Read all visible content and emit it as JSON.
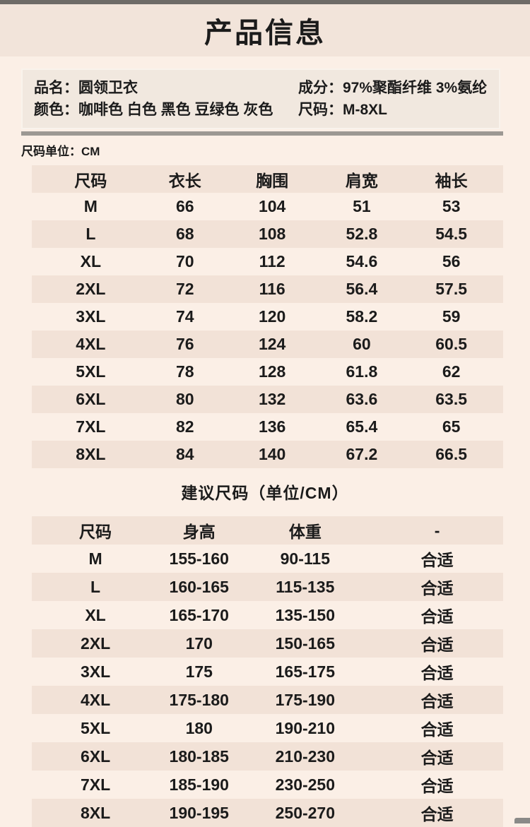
{
  "header": {
    "title": "产品信息"
  },
  "product_info": {
    "name": {
      "label": "品名：",
      "value": "圆领卫衣"
    },
    "composition": {
      "label": "成分：",
      "value": "97%聚酯纤维 3%氨纶"
    },
    "color": {
      "label": "颜色：",
      "value": "咖啡色 白色 黑色 豆绿色 灰色"
    },
    "size_range": {
      "label": "尺码：",
      "value": "M-8XL"
    }
  },
  "size_unit_label": "尺码单位：CM",
  "size_table": {
    "headers": [
      "尺码",
      "衣长",
      "胸围",
      "肩宽",
      "袖长"
    ],
    "rows": [
      [
        "M",
        "66",
        "104",
        "51",
        "53"
      ],
      [
        "L",
        "68",
        "108",
        "52.8",
        "54.5"
      ],
      [
        "XL",
        "70",
        "112",
        "54.6",
        "56"
      ],
      [
        "2XL",
        "72",
        "116",
        "56.4",
        "57.5"
      ],
      [
        "3XL",
        "74",
        "120",
        "58.2",
        "59"
      ],
      [
        "4XL",
        "76",
        "124",
        "60",
        "60.5"
      ],
      [
        "5XL",
        "78",
        "128",
        "61.8",
        "62"
      ],
      [
        "6XL",
        "80",
        "132",
        "63.6",
        "63.5"
      ],
      [
        "7XL",
        "82",
        "136",
        "65.4",
        "65"
      ],
      [
        "8XL",
        "84",
        "140",
        "67.2",
        "66.5"
      ]
    ]
  },
  "suggestion_section": {
    "title": "建议尺码（单位/CM）",
    "table": {
      "headers": [
        "尺码",
        "身高",
        "体重",
        "-"
      ],
      "rows": [
        [
          "M",
          "155-160",
          "90-115",
          "合适"
        ],
        [
          "L",
          "160-165",
          "115-135",
          "合适"
        ],
        [
          "XL",
          "165-170",
          "135-150",
          "合适"
        ],
        [
          "2XL",
          "170",
          "150-165",
          "合适"
        ],
        [
          "3XL",
          "175",
          "165-175",
          "合适"
        ],
        [
          "4XL",
          "175-180",
          "175-190",
          "合适"
        ],
        [
          "5XL",
          "180",
          "190-210",
          "合适"
        ],
        [
          "6XL",
          "180-185",
          "210-230",
          "合适"
        ],
        [
          "7XL",
          "185-190",
          "230-250",
          "合适"
        ],
        [
          "8XL",
          "190-195",
          "250-270",
          "合适"
        ]
      ]
    }
  },
  "colors": {
    "top_bar": "#6e6b67",
    "header_bg": "#f2e4da",
    "page_bg": "#fbefe6",
    "info_box_bg": "#f1e8df",
    "info_box_border": "#f9f3ec",
    "divider": "#9c9893",
    "band": "#f2e2d7",
    "text": "#1b1b1b",
    "corner": "#8a8a88"
  }
}
